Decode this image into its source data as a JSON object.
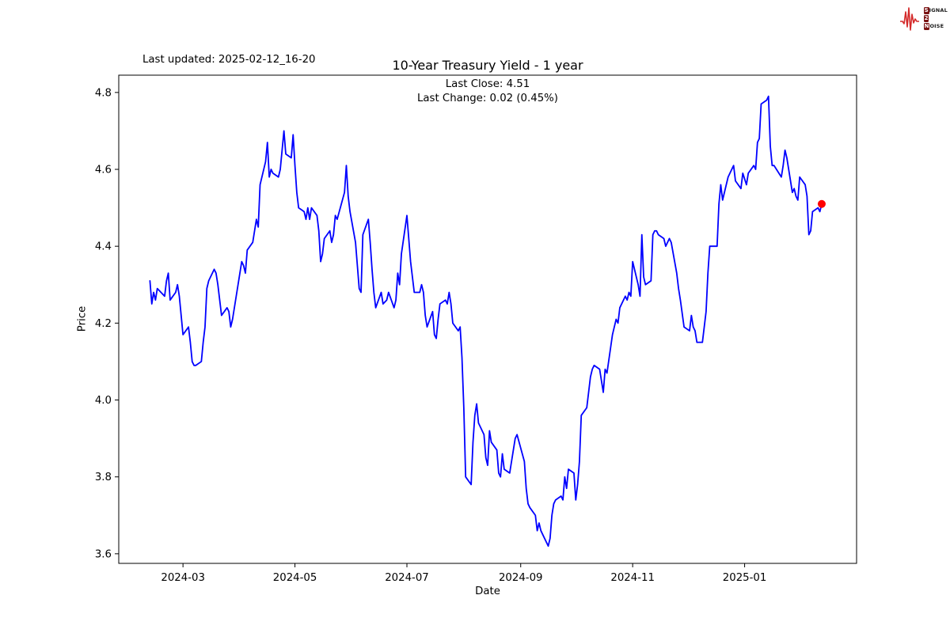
{
  "header": {
    "last_updated": "Last updated: 2025-02-12_16-20",
    "title": "10-Year Treasury Yield - 1 year",
    "subtitle_line1": "Last Close: 4.51",
    "subtitle_line2": "Last Change: 0.02 (0.45%)"
  },
  "logo": {
    "rows": [
      {
        "boxed": "S",
        "rest": "IGNAL"
      },
      {
        "boxed": "2",
        "rest": ""
      },
      {
        "boxed": "N",
        "rest": "OISE"
      }
    ],
    "waveform_color": "#d42a2a",
    "box_color": "#7a1212"
  },
  "chart_data": {
    "type": "line",
    "title": "10-Year Treasury Yield - 1 year",
    "xlabel": "Date",
    "ylabel": "Price",
    "line_color": "#0000ff",
    "line_width": 1.8,
    "last_point_color": "#ff0000",
    "last_close": 4.51,
    "last_change": "0.02 (0.45%)",
    "grid": false,
    "legend": "none",
    "x_domain": [
      "2024-01-26",
      "2025-03-03"
    ],
    "y_domain": [
      3.575,
      4.845
    ],
    "y_ticks": [
      3.6,
      3.8,
      4.0,
      4.2,
      4.4,
      4.6,
      4.8
    ],
    "x_ticks": [
      {
        "date": "2024-03-01",
        "label": "2024-03"
      },
      {
        "date": "2024-05-01",
        "label": "2024-05"
      },
      {
        "date": "2024-07-01",
        "label": "2024-07"
      },
      {
        "date": "2024-09-01",
        "label": "2024-09"
      },
      {
        "date": "2024-11-01",
        "label": "2024-11"
      },
      {
        "date": "2025-01-01",
        "label": "2025-01"
      }
    ],
    "points": [
      [
        "2024-02-12",
        4.31
      ],
      [
        "2024-02-13",
        4.25
      ],
      [
        "2024-02-14",
        4.28
      ],
      [
        "2024-02-15",
        4.26
      ],
      [
        "2024-02-16",
        4.29
      ],
      [
        "2024-02-20",
        4.27
      ],
      [
        "2024-02-21",
        4.31
      ],
      [
        "2024-02-22",
        4.33
      ],
      [
        "2024-02-23",
        4.26
      ],
      [
        "2024-02-26",
        4.28
      ],
      [
        "2024-02-27",
        4.3
      ],
      [
        "2024-02-28",
        4.27
      ],
      [
        "2024-02-29",
        4.22
      ],
      [
        "2024-03-01",
        4.17
      ],
      [
        "2024-03-04",
        4.19
      ],
      [
        "2024-03-05",
        4.15
      ],
      [
        "2024-03-06",
        4.1
      ],
      [
        "2024-03-07",
        4.09
      ],
      [
        "2024-03-08",
        4.09
      ],
      [
        "2024-03-11",
        4.1
      ],
      [
        "2024-03-12",
        4.15
      ],
      [
        "2024-03-13",
        4.19
      ],
      [
        "2024-03-14",
        4.29
      ],
      [
        "2024-03-15",
        4.31
      ],
      [
        "2024-03-18",
        4.34
      ],
      [
        "2024-03-19",
        4.33
      ],
      [
        "2024-03-20",
        4.3
      ],
      [
        "2024-03-21",
        4.26
      ],
      [
        "2024-03-22",
        4.22
      ],
      [
        "2024-03-25",
        4.24
      ],
      [
        "2024-03-26",
        4.23
      ],
      [
        "2024-03-27",
        4.19
      ],
      [
        "2024-03-28",
        4.21
      ],
      [
        "2024-04-01",
        4.33
      ],
      [
        "2024-04-02",
        4.36
      ],
      [
        "2024-04-03",
        4.35
      ],
      [
        "2024-04-04",
        4.33
      ],
      [
        "2024-04-05",
        4.39
      ],
      [
        "2024-04-08",
        4.41
      ],
      [
        "2024-04-09",
        4.44
      ],
      [
        "2024-04-10",
        4.47
      ],
      [
        "2024-04-11",
        4.45
      ],
      [
        "2024-04-12",
        4.56
      ],
      [
        "2024-04-15",
        4.62
      ],
      [
        "2024-04-16",
        4.67
      ],
      [
        "2024-04-17",
        4.58
      ],
      [
        "2024-04-18",
        4.6
      ],
      [
        "2024-04-19",
        4.59
      ],
      [
        "2024-04-22",
        4.58
      ],
      [
        "2024-04-23",
        4.6
      ],
      [
        "2024-04-24",
        4.65
      ],
      [
        "2024-04-25",
        4.7
      ],
      [
        "2024-04-26",
        4.64
      ],
      [
        "2024-04-29",
        4.63
      ],
      [
        "2024-04-30",
        4.69
      ],
      [
        "2024-05-01",
        4.61
      ],
      [
        "2024-05-02",
        4.54
      ],
      [
        "2024-05-03",
        4.5
      ],
      [
        "2024-05-06",
        4.49
      ],
      [
        "2024-05-07",
        4.47
      ],
      [
        "2024-05-08",
        4.5
      ],
      [
        "2024-05-09",
        4.47
      ],
      [
        "2024-05-10",
        4.5
      ],
      [
        "2024-05-13",
        4.48
      ],
      [
        "2024-05-14",
        4.44
      ],
      [
        "2024-05-15",
        4.36
      ],
      [
        "2024-05-16",
        4.38
      ],
      [
        "2024-05-17",
        4.42
      ],
      [
        "2024-05-20",
        4.44
      ],
      [
        "2024-05-21",
        4.41
      ],
      [
        "2024-05-22",
        4.43
      ],
      [
        "2024-05-23",
        4.48
      ],
      [
        "2024-05-24",
        4.47
      ],
      [
        "2024-05-28",
        4.54
      ],
      [
        "2024-05-29",
        4.61
      ],
      [
        "2024-05-30",
        4.53
      ],
      [
        "2024-05-31",
        4.49
      ],
      [
        "2024-06-03",
        4.41
      ],
      [
        "2024-06-04",
        4.35
      ],
      [
        "2024-06-05",
        4.29
      ],
      [
        "2024-06-06",
        4.28
      ],
      [
        "2024-06-07",
        4.43
      ],
      [
        "2024-06-10",
        4.47
      ],
      [
        "2024-06-11",
        4.41
      ],
      [
        "2024-06-12",
        4.34
      ],
      [
        "2024-06-13",
        4.28
      ],
      [
        "2024-06-14",
        4.24
      ],
      [
        "2024-06-17",
        4.28
      ],
      [
        "2024-06-18",
        4.25
      ],
      [
        "2024-06-20",
        4.26
      ],
      [
        "2024-06-21",
        4.28
      ],
      [
        "2024-06-24",
        4.24
      ],
      [
        "2024-06-25",
        4.26
      ],
      [
        "2024-06-26",
        4.33
      ],
      [
        "2024-06-27",
        4.3
      ],
      [
        "2024-06-28",
        4.38
      ],
      [
        "2024-07-01",
        4.48
      ],
      [
        "2024-07-02",
        4.42
      ],
      [
        "2024-07-03",
        4.36
      ],
      [
        "2024-07-05",
        4.28
      ],
      [
        "2024-07-08",
        4.28
      ],
      [
        "2024-07-09",
        4.3
      ],
      [
        "2024-07-10",
        4.28
      ],
      [
        "2024-07-11",
        4.22
      ],
      [
        "2024-07-12",
        4.19
      ],
      [
        "2024-07-15",
        4.23
      ],
      [
        "2024-07-16",
        4.17
      ],
      [
        "2024-07-17",
        4.16
      ],
      [
        "2024-07-18",
        4.21
      ],
      [
        "2024-07-19",
        4.25
      ],
      [
        "2024-07-22",
        4.26
      ],
      [
        "2024-07-23",
        4.25
      ],
      [
        "2024-07-24",
        4.28
      ],
      [
        "2024-07-25",
        4.25
      ],
      [
        "2024-07-26",
        4.2
      ],
      [
        "2024-07-29",
        4.18
      ],
      [
        "2024-07-30",
        4.19
      ],
      [
        "2024-07-31",
        4.11
      ],
      [
        "2024-08-01",
        3.98
      ],
      [
        "2024-08-02",
        3.8
      ],
      [
        "2024-08-05",
        3.78
      ],
      [
        "2024-08-06",
        3.89
      ],
      [
        "2024-08-07",
        3.96
      ],
      [
        "2024-08-08",
        3.99
      ],
      [
        "2024-08-09",
        3.94
      ],
      [
        "2024-08-12",
        3.91
      ],
      [
        "2024-08-13",
        3.85
      ],
      [
        "2024-08-14",
        3.83
      ],
      [
        "2024-08-15",
        3.92
      ],
      [
        "2024-08-16",
        3.89
      ],
      [
        "2024-08-19",
        3.87
      ],
      [
        "2024-08-20",
        3.81
      ],
      [
        "2024-08-21",
        3.8
      ],
      [
        "2024-08-22",
        3.86
      ],
      [
        "2024-08-23",
        3.82
      ],
      [
        "2024-08-26",
        3.81
      ],
      [
        "2024-08-27",
        3.84
      ],
      [
        "2024-08-28",
        3.87
      ],
      [
        "2024-08-29",
        3.9
      ],
      [
        "2024-08-30",
        3.91
      ],
      [
        "2024-09-03",
        3.84
      ],
      [
        "2024-09-04",
        3.77
      ],
      [
        "2024-09-05",
        3.73
      ],
      [
        "2024-09-06",
        3.72
      ],
      [
        "2024-09-09",
        3.7
      ],
      [
        "2024-09-10",
        3.66
      ],
      [
        "2024-09-11",
        3.68
      ],
      [
        "2024-09-12",
        3.66
      ],
      [
        "2024-09-13",
        3.65
      ],
      [
        "2024-09-16",
        3.62
      ],
      [
        "2024-09-17",
        3.64
      ],
      [
        "2024-09-18",
        3.7
      ],
      [
        "2024-09-19",
        3.73
      ],
      [
        "2024-09-20",
        3.74
      ],
      [
        "2024-09-23",
        3.75
      ],
      [
        "2024-09-24",
        3.74
      ],
      [
        "2024-09-25",
        3.8
      ],
      [
        "2024-09-26",
        3.77
      ],
      [
        "2024-09-27",
        3.82
      ],
      [
        "2024-09-30",
        3.81
      ],
      [
        "2024-10-01",
        3.74
      ],
      [
        "2024-10-02",
        3.78
      ],
      [
        "2024-10-03",
        3.84
      ],
      [
        "2024-10-04",
        3.96
      ],
      [
        "2024-10-07",
        3.98
      ],
      [
        "2024-10-08",
        4.02
      ],
      [
        "2024-10-09",
        4.06
      ],
      [
        "2024-10-10",
        4.08
      ],
      [
        "2024-10-11",
        4.09
      ],
      [
        "2024-10-14",
        4.08
      ],
      [
        "2024-10-15",
        4.05
      ],
      [
        "2024-10-16",
        4.02
      ],
      [
        "2024-10-17",
        4.08
      ],
      [
        "2024-10-18",
        4.07
      ],
      [
        "2024-10-21",
        4.17
      ],
      [
        "2024-10-22",
        4.19
      ],
      [
        "2024-10-23",
        4.21
      ],
      [
        "2024-10-24",
        4.2
      ],
      [
        "2024-10-25",
        4.24
      ],
      [
        "2024-10-28",
        4.27
      ],
      [
        "2024-10-29",
        4.26
      ],
      [
        "2024-10-30",
        4.28
      ],
      [
        "2024-10-31",
        4.27
      ],
      [
        "2024-11-01",
        4.36
      ],
      [
        "2024-11-04",
        4.3
      ],
      [
        "2024-11-05",
        4.27
      ],
      [
        "2024-11-06",
        4.43
      ],
      [
        "2024-11-07",
        4.32
      ],
      [
        "2024-11-08",
        4.3
      ],
      [
        "2024-11-11",
        4.31
      ],
      [
        "2024-11-12",
        4.43
      ],
      [
        "2024-11-13",
        4.44
      ],
      [
        "2024-11-14",
        4.44
      ],
      [
        "2024-11-15",
        4.43
      ],
      [
        "2024-11-18",
        4.42
      ],
      [
        "2024-11-19",
        4.4
      ],
      [
        "2024-11-20",
        4.41
      ],
      [
        "2024-11-21",
        4.42
      ],
      [
        "2024-11-22",
        4.41
      ],
      [
        "2024-11-25",
        4.33
      ],
      [
        "2024-11-26",
        4.29
      ],
      [
        "2024-11-27",
        4.26
      ],
      [
        "2024-11-29",
        4.19
      ],
      [
        "2024-12-02",
        4.18
      ],
      [
        "2024-12-03",
        4.22
      ],
      [
        "2024-12-04",
        4.19
      ],
      [
        "2024-12-05",
        4.18
      ],
      [
        "2024-12-06",
        4.15
      ],
      [
        "2024-12-09",
        4.15
      ],
      [
        "2024-12-10",
        4.19
      ],
      [
        "2024-12-11",
        4.23
      ],
      [
        "2024-12-12",
        4.33
      ],
      [
        "2024-12-13",
        4.4
      ],
      [
        "2024-12-16",
        4.4
      ],
      [
        "2024-12-17",
        4.4
      ],
      [
        "2024-12-18",
        4.51
      ],
      [
        "2024-12-19",
        4.56
      ],
      [
        "2024-12-20",
        4.52
      ],
      [
        "2024-12-23",
        4.58
      ],
      [
        "2024-12-24",
        4.59
      ],
      [
        "2024-12-26",
        4.61
      ],
      [
        "2024-12-27",
        4.57
      ],
      [
        "2024-12-30",
        4.55
      ],
      [
        "2024-12-31",
        4.59
      ],
      [
        "2025-01-02",
        4.56
      ],
      [
        "2025-01-03",
        4.59
      ],
      [
        "2025-01-06",
        4.61
      ],
      [
        "2025-01-07",
        4.6
      ],
      [
        "2025-01-08",
        4.67
      ],
      [
        "2025-01-09",
        4.68
      ],
      [
        "2025-01-10",
        4.77
      ],
      [
        "2025-01-13",
        4.78
      ],
      [
        "2025-01-14",
        4.79
      ],
      [
        "2025-01-15",
        4.66
      ],
      [
        "2025-01-16",
        4.61
      ],
      [
        "2025-01-17",
        4.61
      ],
      [
        "2025-01-21",
        4.58
      ],
      [
        "2025-01-22",
        4.61
      ],
      [
        "2025-01-23",
        4.65
      ],
      [
        "2025-01-24",
        4.63
      ],
      [
        "2025-01-27",
        4.54
      ],
      [
        "2025-01-28",
        4.55
      ],
      [
        "2025-01-29",
        4.53
      ],
      [
        "2025-01-30",
        4.52
      ],
      [
        "2025-01-31",
        4.58
      ],
      [
        "2025-02-03",
        4.56
      ],
      [
        "2025-02-04",
        4.53
      ],
      [
        "2025-02-05",
        4.43
      ],
      [
        "2025-02-06",
        4.44
      ],
      [
        "2025-02-07",
        4.49
      ],
      [
        "2025-02-10",
        4.5
      ],
      [
        "2025-02-11",
        4.49
      ],
      [
        "2025-02-12",
        4.51
      ]
    ]
  }
}
